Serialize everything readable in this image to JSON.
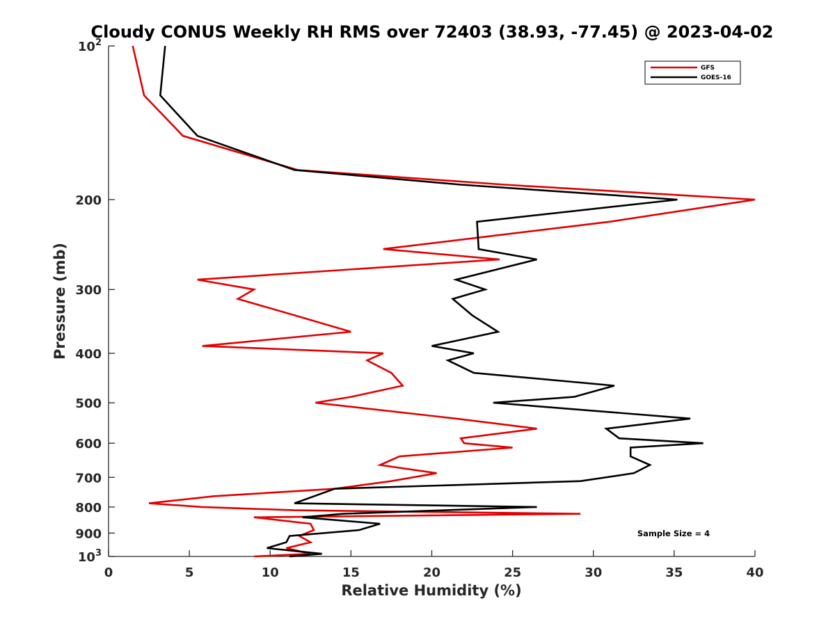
{
  "chart_data": {
    "type": "line",
    "title": "Cloudy CONUS Weekly RH RMS over 72403 (38.93, -77.45) @ 2023-04-02",
    "xlabel": "Relative Humidity (%)",
    "ylabel": "Pressure (mb)",
    "xlim": [
      0,
      40
    ],
    "ylim": [
      100,
      1000
    ],
    "y_scale": "log",
    "y_reversed": true,
    "x_ticks": [
      0,
      5,
      10,
      15,
      20,
      25,
      30,
      35,
      40
    ],
    "x_tick_labels": [
      "0",
      "5",
      "10",
      "15",
      "20",
      "25",
      "30",
      "35",
      "40"
    ],
    "y_ticks": [
      {
        "value": 100,
        "base": "10",
        "exp": "2"
      },
      {
        "value": 200,
        "label": "200"
      },
      {
        "value": 300,
        "label": "300"
      },
      {
        "value": 400,
        "label": "400"
      },
      {
        "value": 500,
        "label": "500"
      },
      {
        "value": 600,
        "label": "600"
      },
      {
        "value": 700,
        "label": "700"
      },
      {
        "value": 800,
        "label": "800"
      },
      {
        "value": 900,
        "label": "900"
      },
      {
        "value": 1000,
        "base": "10",
        "exp": "3"
      }
    ],
    "grid": false,
    "legend_position": "top-right",
    "annotation": "Sample Size = 4",
    "series": [
      {
        "name": "GFS",
        "color": "#e00000",
        "points": [
          [
            1.5,
            100
          ],
          [
            2.2,
            125
          ],
          [
            4.6,
            150
          ],
          [
            11.7,
            175
          ],
          [
            24.5,
            187
          ],
          [
            40.0,
            200
          ],
          [
            31.0,
            221
          ],
          [
            17.0,
            250
          ],
          [
            24.2,
            262
          ],
          [
            5.5,
            287
          ],
          [
            9.0,
            300
          ],
          [
            8.0,
            313
          ],
          [
            11.5,
            337
          ],
          [
            15.0,
            363
          ],
          [
            5.8,
            387
          ],
          [
            17.0,
            400
          ],
          [
            16.0,
            413
          ],
          [
            17.5,
            437
          ],
          [
            18.2,
            463
          ],
          [
            15.0,
            487
          ],
          [
            12.8,
            500
          ],
          [
            21.5,
            537
          ],
          [
            26.5,
            562
          ],
          [
            21.8,
            587
          ],
          [
            22.0,
            600
          ],
          [
            25.0,
            612
          ],
          [
            18.0,
            637
          ],
          [
            16.8,
            662
          ],
          [
            20.3,
            687
          ],
          [
            17.5,
            712
          ],
          [
            14.0,
            737
          ],
          [
            6.5,
            762
          ],
          [
            2.5,
            787
          ],
          [
            5.8,
            800
          ],
          [
            11.5,
            812
          ],
          [
            29.2,
            825
          ],
          [
            9.0,
            838
          ],
          [
            12.5,
            863
          ],
          [
            12.7,
            888
          ],
          [
            11.8,
            912
          ],
          [
            12.5,
            938
          ],
          [
            11.0,
            963
          ],
          [
            12.5,
            988
          ],
          [
            9.0,
            1000
          ]
        ]
      },
      {
        "name": "GOES-16",
        "color": "#000000",
        "points": [
          [
            3.5,
            100
          ],
          [
            3.2,
            125
          ],
          [
            5.5,
            150
          ],
          [
            11.5,
            175
          ],
          [
            21.8,
            187
          ],
          [
            35.2,
            200
          ],
          [
            22.8,
            221
          ],
          [
            22.9,
            250
          ],
          [
            26.5,
            262
          ],
          [
            21.5,
            287
          ],
          [
            23.3,
            300
          ],
          [
            21.3,
            313
          ],
          [
            22.5,
            337
          ],
          [
            24.1,
            363
          ],
          [
            20.0,
            387
          ],
          [
            22.6,
            400
          ],
          [
            21.0,
            413
          ],
          [
            22.6,
            437
          ],
          [
            31.3,
            463
          ],
          [
            28.8,
            487
          ],
          [
            23.8,
            500
          ],
          [
            36.0,
            537
          ],
          [
            30.8,
            562
          ],
          [
            31.6,
            587
          ],
          [
            36.8,
            600
          ],
          [
            32.3,
            612
          ],
          [
            32.3,
            637
          ],
          [
            33.5,
            662
          ],
          [
            32.5,
            687
          ],
          [
            29.2,
            712
          ],
          [
            14.0,
            737
          ],
          [
            11.5,
            787
          ],
          [
            26.5,
            800
          ],
          [
            14.5,
            825
          ],
          [
            12.0,
            838
          ],
          [
            16.8,
            863
          ],
          [
            15.5,
            888
          ],
          [
            11.2,
            912
          ],
          [
            11.0,
            938
          ],
          [
            9.8,
            963
          ],
          [
            13.2,
            988
          ],
          [
            11.2,
            1000
          ]
        ]
      }
    ]
  }
}
